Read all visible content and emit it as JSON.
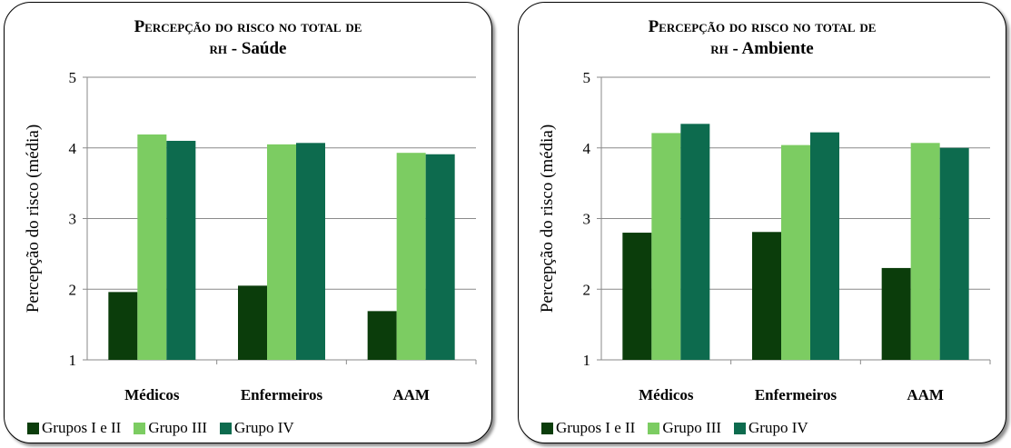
{
  "chart_data": [
    {
      "type": "bar",
      "title_prefix": "Percepção do risco no total de",
      "title_rh": "rh",
      "title_suffix": " - Saúde",
      "ylabel": "Percepção do risco (média)",
      "xlabel": "",
      "ylim": [
        1,
        5
      ],
      "yticks": [
        "1",
        "2",
        "3",
        "4",
        "5"
      ],
      "grid": true,
      "legend_position": "bottom",
      "categories": [
        "Médicos",
        "Enfermeiros",
        "AAM"
      ],
      "series": [
        {
          "name": "Grupos I e II",
          "color": "#0b3d0b",
          "values": [
            1.96,
            2.05,
            1.69
          ]
        },
        {
          "name": "Grupo III",
          "color": "#7ccc62",
          "values": [
            4.19,
            4.05,
            3.93
          ]
        },
        {
          "name": "Grupo IV",
          "color": "#0d6b4e",
          "values": [
            4.1,
            4.07,
            3.91
          ]
        }
      ]
    },
    {
      "type": "bar",
      "title_prefix": "Percepção do risco no total de",
      "title_rh": "rh",
      "title_suffix": " - Ambiente",
      "ylabel": "Percepção do risco (média)",
      "xlabel": "",
      "ylim": [
        1,
        5
      ],
      "yticks": [
        "1",
        "2",
        "3",
        "4",
        "5"
      ],
      "grid": true,
      "legend_position": "bottom",
      "categories": [
        "Médicos",
        "Enfermeiros",
        "AAM"
      ],
      "series": [
        {
          "name": "Grupos I e II",
          "color": "#0b3d0b",
          "values": [
            2.8,
            2.81,
            2.3
          ]
        },
        {
          "name": "Grupo III",
          "color": "#7ccc62",
          "values": [
            4.21,
            4.04,
            4.07
          ]
        },
        {
          "name": "Grupo IV",
          "color": "#0d6b4e",
          "values": [
            4.34,
            4.22,
            4.0
          ]
        }
      ]
    }
  ]
}
